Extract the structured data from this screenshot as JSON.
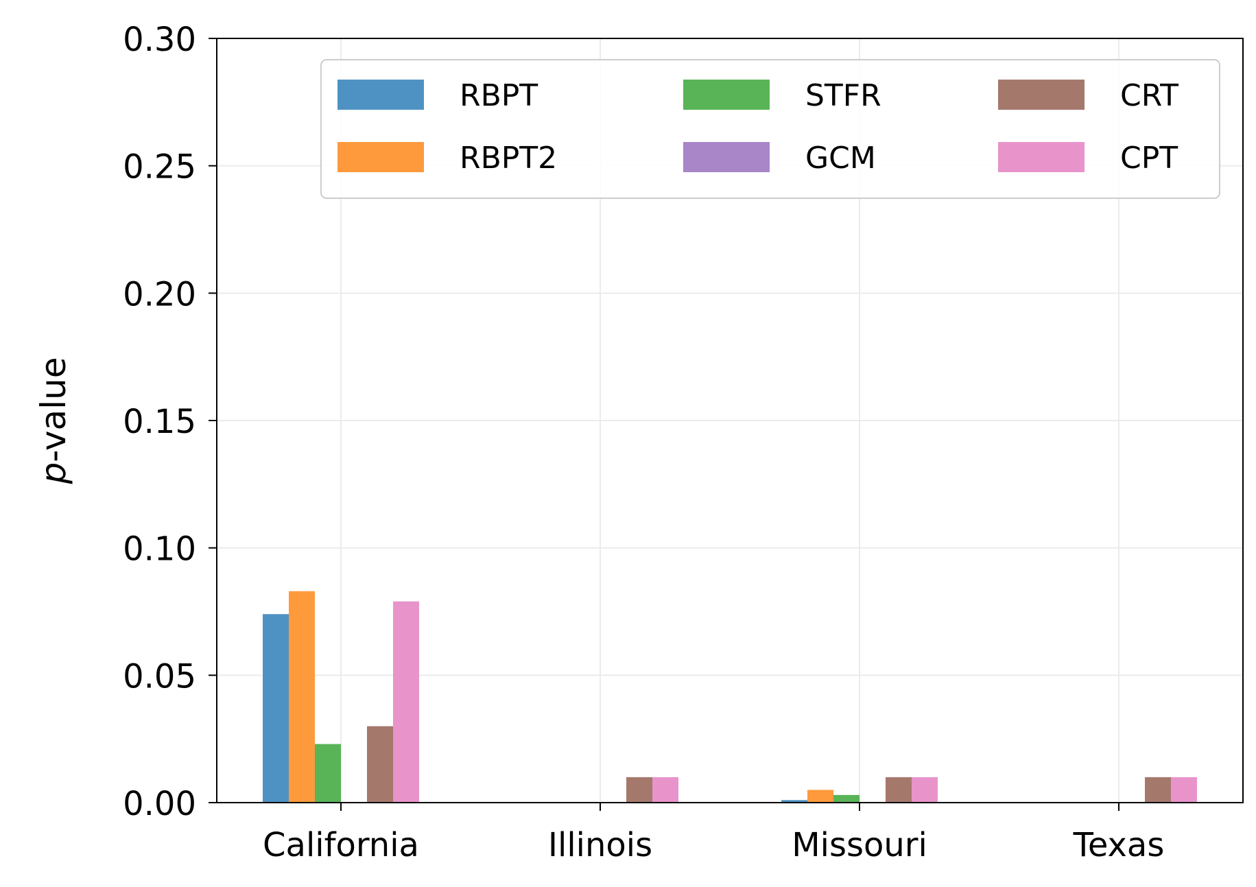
{
  "chart_data": {
    "type": "bar",
    "categories": [
      "California",
      "Illinois",
      "Missouri",
      "Texas"
    ],
    "series": [
      {
        "name": "RBPT",
        "color": "#4e92c4",
        "values": [
          0.074,
          0.0,
          0.001,
          0.0
        ]
      },
      {
        "name": "RBPT2",
        "color": "#fe9a3c",
        "values": [
          0.083,
          0.0,
          0.005,
          0.0
        ]
      },
      {
        "name": "STFR",
        "color": "#58b457",
        "values": [
          0.023,
          0.0,
          0.003,
          0.0
        ]
      },
      {
        "name": "GCM",
        "color": "#a886c8",
        "values": [
          0.0,
          0.0,
          0.0,
          0.0
        ]
      },
      {
        "name": "CRT",
        "color": "#a5786c",
        "values": [
          0.03,
          0.01,
          0.01,
          0.01
        ]
      },
      {
        "name": "CPT",
        "color": "#e894cb",
        "values": [
          0.079,
          0.01,
          0.01,
          0.01
        ]
      }
    ],
    "title": "",
    "xlabel": "",
    "ylabel_prefix": "p",
    "ylabel_suffix": "-value",
    "ylim": [
      0,
      0.3
    ],
    "yticks": [
      "0.00",
      "0.05",
      "0.10",
      "0.15",
      "0.20",
      "0.25",
      "0.30"
    ],
    "grid": true,
    "legend": {
      "placement": "top-right",
      "columns": 3
    }
  }
}
